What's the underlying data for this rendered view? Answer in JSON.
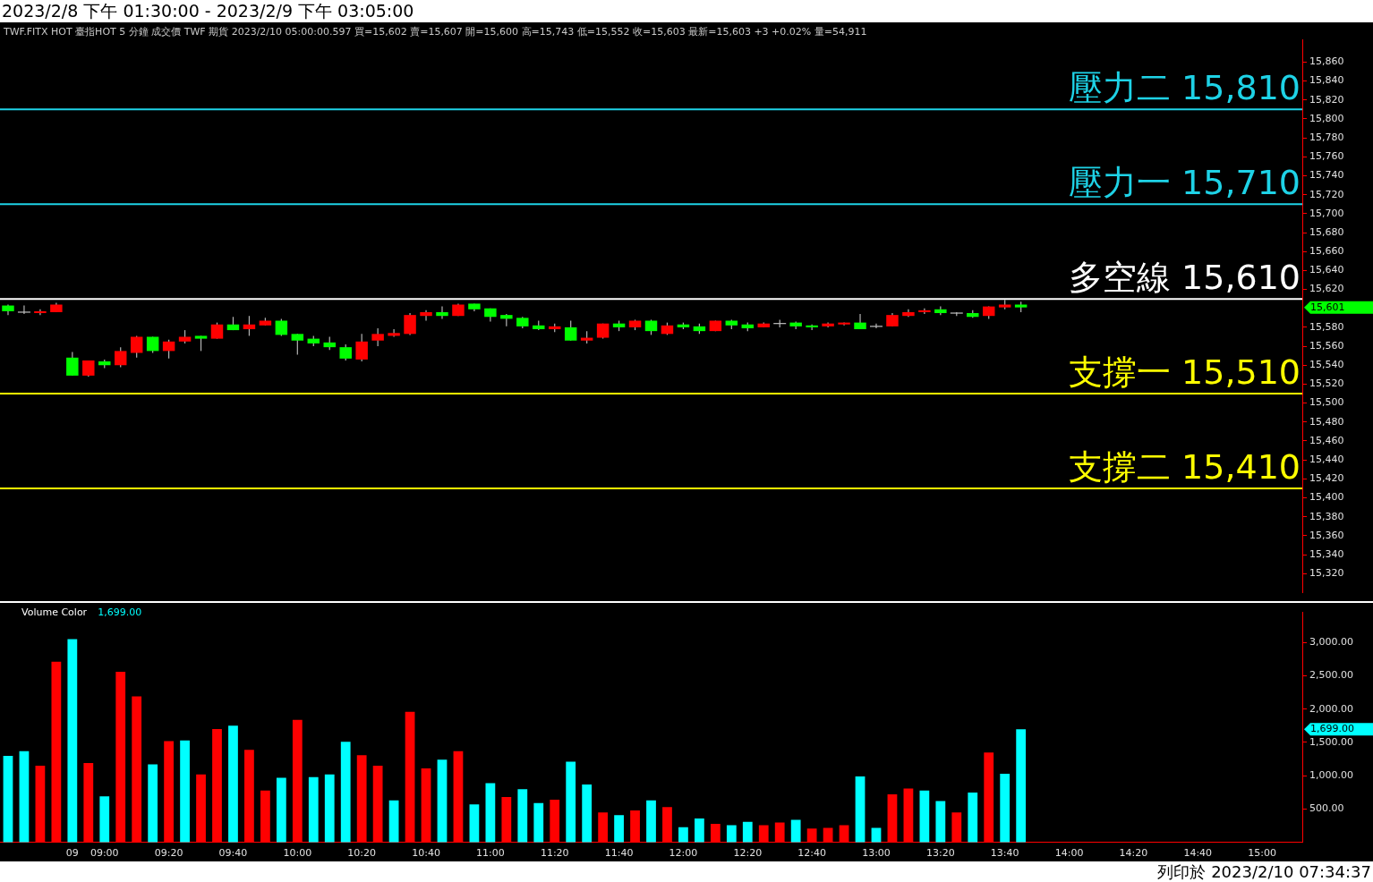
{
  "chart_data": [
    {
      "type": "candlestick",
      "title": "2023/2/8 下午 01:30:00 - 2023/2/9 下午 03:05:00",
      "subtitle": "TWF.FITX HOT 臺指HOT 5 分鐘 成交價 TWF 期貨 2023/2/10 05:00:00.597 買=15,602 賣=15,607 開=15,600 高=15,743 低=15,552 收=15,603 最新=15,603 +3 +0.02% 量=54,911",
      "categories": [
        null,
        null,
        null,
        null,
        null,
        null,
        null,
        null,
        null,
        null,
        null,
        null,
        null,
        null,
        null,
        null,
        null,
        null,
        null,
        null,
        null,
        null,
        null,
        null,
        null,
        null,
        null,
        null,
        null,
        null,
        null,
        null,
        null,
        null,
        null,
        null,
        null,
        null,
        null,
        null,
        null,
        null,
        null,
        null,
        null,
        null,
        null,
        null,
        null,
        null,
        null,
        null,
        null,
        null,
        null,
        null,
        null,
        null,
        null,
        null,
        null,
        null,
        null,
        null,
        null,
        null,
        null,
        null,
        null,
        null,
        null,
        null,
        null,
        null,
        null,
        null,
        null,
        null,
        null,
        null,
        null
      ],
      "ohlc": [
        [
          15603,
          15604,
          15593,
          15597
        ],
        [
          15596,
          15603,
          15594,
          15596
        ],
        [
          15595,
          15599,
          15593,
          15597
        ],
        [
          15596,
          15606,
          15596,
          15604
        ],
        [
          15548,
          15554,
          15529,
          15529
        ],
        [
          15529,
          15545,
          15528,
          15545
        ],
        [
          15544,
          15546,
          15537,
          15540
        ],
        [
          15540,
          15559,
          15538,
          15555
        ],
        [
          15553,
          15571,
          15548,
          15570
        ],
        [
          15570,
          15570,
          15553,
          15555
        ],
        [
          15555,
          15567,
          15547,
          15565
        ],
        [
          15565,
          15577,
          15563,
          15570
        ],
        [
          15571,
          15571,
          15555,
          15568
        ],
        [
          15568,
          15585,
          15568,
          15583
        ],
        [
          15583,
          15591,
          15577,
          15577
        ],
        [
          15578,
          15592,
          15571,
          15583
        ],
        [
          15582,
          15590,
          15582,
          15587
        ],
        [
          15587,
          15589,
          15571,
          15572
        ],
        [
          15573,
          15573,
          15551,
          15566
        ],
        [
          15568,
          15571,
          15560,
          15563
        ],
        [
          15564,
          15570,
          15556,
          15559
        ],
        [
          15559,
          15562,
          15545,
          15547
        ],
        [
          15546,
          15573,
          15544,
          15565
        ],
        [
          15566,
          15579,
          15560,
          15573
        ],
        [
          15571,
          15578,
          15570,
          15574
        ],
        [
          15573,
          15595,
          15572,
          15593
        ],
        [
          15592,
          15598,
          15587,
          15596
        ],
        [
          15596,
          15602,
          15589,
          15592
        ],
        [
          15592,
          15605,
          15592,
          15604
        ],
        [
          15605,
          15605,
          15597,
          15599
        ],
        [
          15600,
          15600,
          15586,
          15591
        ],
        [
          15593,
          15594,
          15581,
          15589
        ],
        [
          15590,
          15591,
          15579,
          15581
        ],
        [
          15582,
          15587,
          15577,
          15578
        ],
        [
          15578,
          15584,
          15575,
          15581
        ],
        [
          15580,
          15587,
          15566,
          15566
        ],
        [
          15566,
          15576,
          15563,
          15569
        ],
        [
          15569,
          15584,
          15568,
          15584
        ],
        [
          15584,
          15587,
          15576,
          15580
        ],
        [
          15580,
          15588,
          15577,
          15587
        ],
        [
          15587,
          15588,
          15572,
          15576
        ],
        [
          15573,
          15585,
          15572,
          15582
        ],
        [
          15583,
          15585,
          15578,
          15580
        ],
        [
          15581,
          15584,
          15573,
          15576
        ],
        [
          15576,
          15587,
          15576,
          15587
        ],
        [
          15587,
          15588,
          15578,
          15582
        ],
        [
          15583,
          15585,
          15576,
          15579
        ],
        [
          15580,
          15585,
          15580,
          15584
        ],
        [
          15584,
          15588,
          15580,
          15584
        ],
        [
          15585,
          15586,
          15578,
          15581
        ],
        [
          15582,
          15583,
          15577,
          15580
        ],
        [
          15581,
          15585,
          15580,
          15584
        ],
        [
          15583,
          15585,
          15582,
          15585
        ],
        [
          15585,
          15594,
          15578,
          15578
        ],
        [
          15581,
          15584,
          15579,
          15581
        ],
        [
          15581,
          15595,
          15581,
          15593
        ],
        [
          15592,
          15599,
          15591,
          15596
        ],
        [
          15596,
          15600,
          15594,
          15598
        ],
        [
          15599,
          15602,
          15593,
          15595
        ],
        [
          15595,
          15596,
          15592,
          15595
        ],
        [
          15595,
          15598,
          15590,
          15591
        ],
        [
          15592,
          15602,
          15589,
          15602
        ],
        [
          15601,
          15609,
          15599,
          15604
        ],
        [
          15604,
          15607,
          15596,
          15601
        ],
        null,
        null,
        null,
        null,
        null,
        null,
        null,
        null,
        null,
        null,
        null,
        null,
        null,
        null,
        null,
        null,
        null
      ],
      "colors": [
        "#00ff00",
        "#c0c0c0",
        "#ff0000",
        "#ff0000",
        "#00ff00",
        "#ff0000",
        "#00ff00",
        "#ff0000",
        "#ff0000",
        "#00ff00",
        "#ff0000",
        "#ff0000",
        "#00ff00",
        "#ff0000",
        "#00ff00",
        "#ff0000",
        "#ff0000",
        "#00ff00",
        "#00ff00",
        "#00ff00",
        "#00ff00",
        "#00ff00",
        "#ff0000",
        "#ff0000",
        "#ff0000",
        "#ff0000",
        "#ff0000",
        "#00ff00",
        "#ff0000",
        "#00ff00",
        "#00ff00",
        "#00ff00",
        "#00ff00",
        "#00ff00",
        "#ff0000",
        "#00ff00",
        "#ff0000",
        "#ff0000",
        "#00ff00",
        "#ff0000",
        "#00ff00",
        "#ff0000",
        "#00ff00",
        "#00ff00",
        "#ff0000",
        "#00ff00",
        "#00ff00",
        "#ff0000",
        "#c0c0c0",
        "#00ff00",
        "#00ff00",
        "#ff0000",
        "#ff0000",
        "#00ff00",
        "#c0c0c0",
        "#ff0000",
        "#ff0000",
        "#ff0000",
        "#00ff00",
        "#c0c0c0",
        "#00ff00",
        "#ff0000",
        "#ff0000",
        "#00ff00",
        null,
        null,
        null,
        null,
        null,
        null,
        null,
        null,
        null,
        null,
        null,
        null,
        null,
        null,
        null,
        null,
        null
      ],
      "ylim": [
        15300,
        15884
      ],
      "yticks": [
        {
          "value": 15320,
          "label": "15,320"
        },
        {
          "value": 15340,
          "label": "15,340"
        },
        {
          "value": 15360,
          "label": "15,360"
        },
        {
          "value": 15380,
          "label": "15,380"
        },
        {
          "value": 15400,
          "label": "15,400"
        },
        {
          "value": 15420,
          "label": "15,420"
        },
        {
          "value": 15440,
          "label": "15,440"
        },
        {
          "value": 15460,
          "label": "15,460"
        },
        {
          "value": 15480,
          "label": "15,480"
        },
        {
          "value": 15500,
          "label": "15,500"
        },
        {
          "value": 15520,
          "label": "15,520"
        },
        {
          "value": 15540,
          "label": "15,540"
        },
        {
          "value": 15560,
          "label": "15,560"
        },
        {
          "value": 15580,
          "label": "15,580"
        },
        {
          "value": 15620,
          "label": "15,620"
        },
        {
          "value": 15640,
          "label": "15,640"
        },
        {
          "value": 15660,
          "label": "15,660"
        },
        {
          "value": 15680,
          "label": "15,680"
        },
        {
          "value": 15700,
          "label": "15,700"
        },
        {
          "value": 15720,
          "label": "15,720"
        },
        {
          "value": 15740,
          "label": "15,740"
        },
        {
          "value": 15760,
          "label": "15,760"
        },
        {
          "value": 15780,
          "label": "15,780"
        },
        {
          "value": 15800,
          "label": "15,800"
        },
        {
          "value": 15820,
          "label": "15,820"
        },
        {
          "value": 15840,
          "label": "15,840"
        },
        {
          "value": 15860,
          "label": "15,860"
        }
      ],
      "ref_lines": [
        {
          "axis": "y",
          "value": 15810,
          "label": "壓力二 15,810",
          "color": "#1ed2e6"
        },
        {
          "axis": "y",
          "value": 15710,
          "label": "壓力一 15,710",
          "color": "#1ed2e6"
        },
        {
          "axis": "y",
          "value": 15610,
          "label": "多空線 15,610",
          "color": "#ffffff"
        },
        {
          "axis": "y",
          "value": 15510,
          "label": "支撐一 15,510",
          "color": "#ffff00"
        },
        {
          "axis": "y",
          "value": 15410,
          "label": "支撐二 15,410",
          "color": "#ffff00"
        }
      ],
      "annotations": [
        "15,601"
      ],
      "tick_labels": "y"
    },
    {
      "type": "bar",
      "title": "Volume Color",
      "categories": [
        null,
        null,
        null,
        null,
        "09",
        null,
        "09:00",
        null,
        null,
        null,
        "09:20",
        null,
        null,
        null,
        "09:40",
        null,
        null,
        null,
        "10:00",
        null,
        null,
        null,
        "10:20",
        null,
        null,
        null,
        "10:40",
        null,
        null,
        null,
        "11:00",
        null,
        null,
        null,
        "11:20",
        null,
        null,
        null,
        "11:40",
        null,
        null,
        null,
        "12:00",
        null,
        null,
        null,
        "12:20",
        null,
        null,
        null,
        "12:40",
        null,
        null,
        null,
        "13:00",
        null,
        null,
        null,
        "13:20",
        null,
        null,
        null,
        "13:40",
        null,
        null,
        null,
        "14:00",
        null,
        null,
        null,
        "14:20",
        null,
        null,
        null,
        "14:40",
        null,
        null,
        null,
        "15:00",
        null,
        null
      ],
      "values": [
        1300,
        1370,
        1150,
        2710,
        3050,
        1190,
        690,
        2560,
        2190,
        1170,
        1520,
        1530,
        1020,
        1700,
        1750,
        1390,
        780,
        970,
        1840,
        980,
        1020,
        1510,
        1310,
        1150,
        630,
        1960,
        1110,
        1240,
        1370,
        570,
        890,
        680,
        800,
        590,
        640,
        1210,
        870,
        450,
        410,
        480,
        630,
        530,
        230,
        360,
        280,
        260,
        310,
        260,
        300,
        340,
        210,
        220,
        260,
        990,
        220,
        720,
        810,
        780,
        620,
        450,
        750,
        1350,
        1030,
        1699,
        null,
        null,
        null,
        null,
        null,
        null,
        null,
        null,
        null,
        null,
        null,
        null,
        null,
        null,
        null,
        null,
        null
      ],
      "colors": [
        "#00ffff",
        "#00ffff",
        "#ff0000",
        "#ff0000",
        "#00ffff",
        "#ff0000",
        "#00ffff",
        "#ff0000",
        "#ff0000",
        "#00ffff",
        "#ff0000",
        "#00ffff",
        "#ff0000",
        "#ff0000",
        "#00ffff",
        "#ff0000",
        "#ff0000",
        "#00ffff",
        "#ff0000",
        "#00ffff",
        "#00ffff",
        "#00ffff",
        "#ff0000",
        "#ff0000",
        "#00ffff",
        "#ff0000",
        "#ff0000",
        "#00ffff",
        "#ff0000",
        "#00ffff",
        "#00ffff",
        "#ff0000",
        "#00ffff",
        "#00ffff",
        "#ff0000",
        "#00ffff",
        "#00ffff",
        "#ff0000",
        "#00ffff",
        "#ff0000",
        "#00ffff",
        "#ff0000",
        "#00ffff",
        "#00ffff",
        "#ff0000",
        "#00ffff",
        "#00ffff",
        "#ff0000",
        "#ff0000",
        "#00ffff",
        "#ff0000",
        "#ff0000",
        "#ff0000",
        "#00ffff",
        "#00ffff",
        "#ff0000",
        "#ff0000",
        "#00ffff",
        "#00ffff",
        "#ff0000",
        "#00ffff",
        "#ff0000",
        "#00ffff",
        "#00ffff",
        null,
        null,
        null,
        null,
        null,
        null,
        null,
        null,
        null,
        null,
        null,
        null,
        null,
        null,
        null,
        null,
        null
      ],
      "ylim": [
        0,
        3450
      ],
      "yticks": [
        {
          "value": 500,
          "label": "500.00"
        },
        {
          "value": 1000,
          "label": "1,000.00"
        },
        {
          "value": 1500,
          "label": "1,500.00"
        },
        {
          "value": 2000,
          "label": "2,000.00"
        },
        {
          "value": 2500,
          "label": "2,500.00"
        },
        {
          "value": 3000,
          "label": "3,000.00"
        }
      ],
      "annotations": [
        "1,699.00",
        "1,699.00",
        "列印於 2023/2/10 07:34:37"
      ]
    }
  ]
}
